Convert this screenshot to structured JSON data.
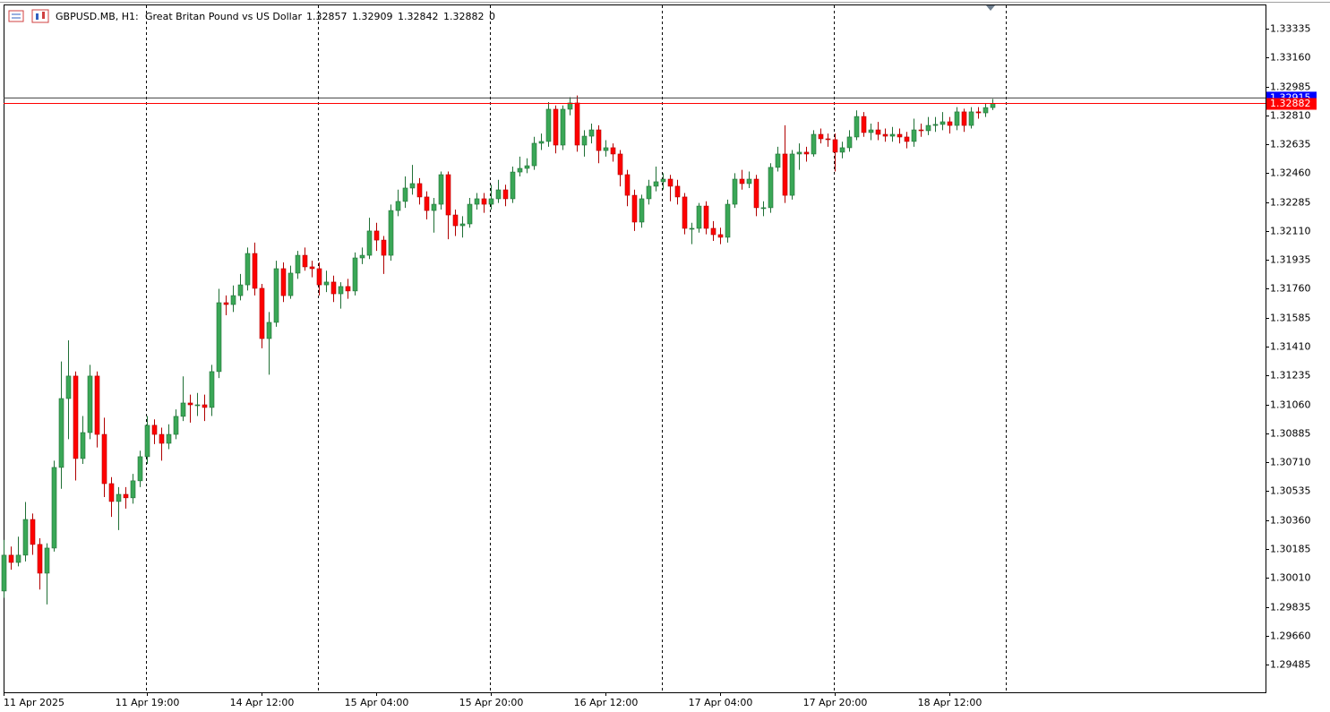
{
  "chart_data": {
    "type": "candlestick",
    "symbol": "GBPUSD.MB, H1:",
    "description": "Great Britan Pound vs US Dollar",
    "header_value": 0,
    "up_color": "#3aa757",
    "down_color": "#ff0000",
    "ask": 1.32915,
    "ask_color": "#0000ff",
    "bid": 1.32882,
    "bid_color": "#ff0000",
    "ylim": [
      1.29318,
      1.33481
    ],
    "yticks": [
      1.33335,
      {
        "value": 1.3316,
        "label": "1.33160"
      },
      1.32985,
      {
        "value": 1.3281,
        "label": "1.32810"
      },
      1.32635,
      {
        "value": 1.3246,
        "label": "1.32460"
      },
      1.32285,
      {
        "value": 1.3211,
        "label": "1.32110"
      },
      1.31935,
      {
        "value": 1.3176,
        "label": "1.31760"
      },
      1.31585,
      {
        "value": 1.3141,
        "label": "1.31410"
      },
      1.31235,
      {
        "value": 1.3106,
        "label": "1.31060"
      },
      1.30885,
      {
        "value": 1.3071,
        "label": "1.30710"
      },
      1.30535,
      {
        "value": 1.3036,
        "label": "1.30360"
      },
      1.30185,
      {
        "value": 1.3001,
        "label": "1.30010"
      },
      1.29835,
      {
        "value": 1.2966,
        "label": "1.29660"
      },
      1.29485
    ],
    "categories": [
      "11 Apr 2025",
      null,
      null,
      null,
      null,
      null,
      null,
      null,
      null,
      null,
      null,
      null,
      null,
      null,
      null,
      null,
      null,
      null,
      null,
      null,
      "11 Apr 19:00",
      null,
      null,
      null,
      null,
      null,
      null,
      null,
      null,
      null,
      null,
      null,
      null,
      null,
      null,
      null,
      "14 Apr 12:00",
      null,
      null,
      null,
      null,
      null,
      null,
      null,
      null,
      null,
      null,
      null,
      null,
      null,
      null,
      null,
      "15 Apr 04:00",
      null,
      null,
      null,
      null,
      null,
      null,
      null,
      null,
      null,
      null,
      null,
      null,
      null,
      null,
      null,
      "15 Apr 20:00",
      null,
      null,
      null,
      null,
      null,
      null,
      null,
      null,
      null,
      null,
      null,
      null,
      null,
      null,
      null,
      "16 Apr 12:00",
      null,
      null,
      null,
      null,
      null,
      null,
      null,
      null,
      null,
      null,
      null,
      null,
      null,
      null,
      null,
      "17 Apr 04:00",
      null,
      null,
      null,
      null,
      null,
      null,
      null,
      null,
      null,
      null,
      null,
      null,
      null,
      null,
      null,
      "17 Apr 20:00",
      null,
      null,
      null,
      null,
      null,
      null,
      null,
      null,
      null,
      null,
      null,
      null,
      null,
      null,
      null,
      "18 Apr 12:00",
      null,
      null,
      null,
      null,
      null,
      null
    ],
    "open": [
      1.29931,
      1.30148,
      1.30104,
      1.30148,
      1.30364,
      1.30213,
      1.30039,
      1.30191,
      1.30679,
      1.31096,
      1.31232,
      1.30733,
      1.3089,
      1.31232,
      1.30879,
      1.30581,
      1.30473,
      1.30516,
      1.30495,
      1.30598,
      1.30744,
      1.30934,
      1.30879,
      1.30825,
      1.30879,
      1.30988,
      1.31069,
      1.31058,
      1.31058,
      1.31042,
      1.31259,
      1.31676,
      1.31665,
      1.31719,
      1.31784,
      1.31974,
      1.31763,
      1.31459,
      1.31557,
      1.31882,
      1.31719,
      1.31855,
      1.31963,
      1.31893,
      1.31882,
      1.31784,
      1.31801,
      1.3173,
      1.31774,
      1.31747,
      1.31947,
      1.31963,
      1.3211,
      1.32055,
      1.31963,
      1.32234,
      1.32289,
      1.3237,
      1.32397,
      1.32316,
      1.32234,
      1.32272,
      1.32451,
      1.32207,
      1.32142,
      1.32153,
      1.32272,
      1.32305,
      1.32272,
      1.32305,
      1.32359,
      1.32305,
      1.32467,
      1.32489,
      1.32505,
      1.32641,
      1.32652,
      1.32847,
      1.3263,
      1.32847,
      1.32885,
      1.3263,
      1.32684,
      1.32722,
      1.32597,
      1.32614,
      1.32576,
      1.32451,
      1.32326,
      1.32164,
      1.32305,
      1.32381,
      1.32408,
      1.32424,
      1.32381,
      1.32316,
      1.32126,
      1.32126,
      1.32261,
      1.32126,
      1.32088,
      1.32072,
      1.32272,
      1.32424,
      1.32397,
      1.32424,
      1.32251,
      1.32251,
      1.32495,
      1.32576,
      1.32326,
      1.32576,
      1.32587,
      1.32576,
      1.32695,
      1.32668,
      1.32663,
      1.32587,
      1.32614,
      1.32679,
      1.32803,
      1.32706,
      1.32722,
      1.32695,
      1.32684,
      1.32695,
      1.32679,
      1.32652,
      1.32722,
      1.32717,
      1.32749,
      1.32755,
      1.32771,
      1.32749,
      1.32831,
      1.32749,
      1.32831,
      1.32825,
      1.32857
    ],
    "high": [
      1.3024,
      1.302,
      1.3026,
      1.3047,
      1.304,
      1.3025,
      1.3022,
      1.3072,
      1.3132,
      1.31448,
      1.3126,
      1.3099,
      1.313,
      1.3126,
      1.3098,
      1.3062,
      1.3056,
      1.3056,
      1.3064,
      1.3078,
      1.3099,
      1.3097,
      1.3092,
      1.3094,
      1.3103,
      1.3123,
      1.3112,
      1.3113,
      1.3112,
      1.313,
      1.3176,
      1.3172,
      1.3178,
      1.3185,
      1.3201,
      1.3204,
      1.3179,
      1.3162,
      1.3193,
      1.3192,
      1.319,
      1.3199,
      1.3201,
      1.3193,
      1.3192,
      1.3187,
      1.3184,
      1.318,
      1.3182,
      1.3198,
      1.3201,
      1.3219,
      1.3216,
      1.3208,
      1.3227,
      1.3236,
      1.3244,
      1.3251,
      1.3243,
      1.3235,
      1.3231,
      1.3247,
      1.3247,
      1.3224,
      1.322,
      1.3231,
      1.3234,
      1.3234,
      1.3239,
      1.3242,
      1.3239,
      1.325,
      1.3256,
      1.3255,
      1.3268,
      1.327,
      1.3289,
      1.3287,
      1.3287,
      1.3292,
      1.3293,
      1.3272,
      1.3276,
      1.3275,
      1.3266,
      1.3264,
      1.326,
      1.3248,
      1.3236,
      1.3233,
      1.3242,
      1.325,
      1.3246,
      1.3245,
      1.3242,
      1.3234,
      1.3216,
      1.3228,
      1.3229,
      1.3217,
      1.3213,
      1.323,
      1.3246,
      1.3248,
      1.3247,
      1.3245,
      1.3229,
      1.3252,
      1.3262,
      1.3275,
      1.326,
      1.3264,
      1.3262,
      1.3272,
      1.3273,
      1.327,
      1.327,
      1.3265,
      1.3272,
      1.3284,
      1.3283,
      1.3276,
      1.3277,
      1.3273,
      1.3274,
      1.3273,
      1.3271,
      1.3279,
      1.3276,
      1.328,
      1.328,
      1.3283,
      1.328,
      1.3286,
      1.3285,
      1.3286,
      1.3286,
      1.3288,
      1.32909
    ],
    "low": [
      1.2989,
      1.3006,
      1.3008,
      1.3011,
      1.3015,
      1.2994,
      1.2985,
      1.3017,
      1.3055,
      1.3085,
      1.306,
      1.307,
      1.3085,
      1.308,
      1.305,
      1.3038,
      1.303,
      1.3043,
      1.3046,
      1.3056,
      1.307,
      1.3082,
      1.3072,
      1.3079,
      1.3085,
      1.3096,
      1.3095,
      1.3099,
      1.3096,
      1.3099,
      1.3122,
      1.316,
      1.3162,
      1.3169,
      1.3175,
      1.3172,
      1.314,
      1.3124,
      1.3153,
      1.3168,
      1.317,
      1.3182,
      1.3187,
      1.3183,
      1.3172,
      1.3174,
      1.3168,
      1.3164,
      1.317,
      1.3172,
      1.3191,
      1.3194,
      1.3199,
      1.3185,
      1.3193,
      1.322,
      1.3225,
      1.3233,
      1.3227,
      1.3218,
      1.321,
      1.3224,
      1.3206,
      1.3208,
      1.3207,
      1.3213,
      1.3224,
      1.3222,
      1.3224,
      1.3228,
      1.3226,
      1.3228,
      1.3244,
      1.3246,
      1.3248,
      1.326,
      1.3262,
      1.3258,
      1.326,
      1.3281,
      1.3259,
      1.3256,
      1.3264,
      1.3252,
      1.3256,
      1.3253,
      1.3238,
      1.3226,
      1.3211,
      1.3213,
      1.3227,
      1.3235,
      1.3236,
      1.3229,
      1.3227,
      1.3209,
      1.3203,
      1.321,
      1.3209,
      1.3205,
      1.3203,
      1.3204,
      1.3225,
      1.3236,
      1.3237,
      1.322,
      1.322,
      1.3222,
      1.3247,
      1.3228,
      1.323,
      1.3248,
      1.3253,
      1.3256,
      1.3264,
      1.3262,
      1.3247,
      1.3255,
      1.3259,
      1.3266,
      1.3268,
      1.3266,
      1.3266,
      1.3265,
      1.3265,
      1.3264,
      1.3261,
      1.3262,
      1.3268,
      1.3269,
      1.3271,
      1.3272,
      1.327,
      1.3272,
      1.3271,
      1.3273,
      1.3279,
      1.328,
      1.32842
    ],
    "close": [
      1.30148,
      1.30104,
      1.30148,
      1.30364,
      1.30213,
      1.30039,
      1.30191,
      1.30679,
      1.31096,
      1.31232,
      1.30733,
      1.3089,
      1.31232,
      1.30879,
      1.30581,
      1.30473,
      1.30516,
      1.30495,
      1.30598,
      1.30744,
      1.30934,
      1.30879,
      1.30825,
      1.30879,
      1.30988,
      1.31069,
      1.31058,
      1.31058,
      1.31042,
      1.31259,
      1.31676,
      1.31665,
      1.31719,
      1.31784,
      1.31974,
      1.31763,
      1.31459,
      1.31557,
      1.31882,
      1.31719,
      1.31855,
      1.31963,
      1.31893,
      1.31882,
      1.31784,
      1.31801,
      1.3173,
      1.31774,
      1.31747,
      1.31947,
      1.31963,
      1.3211,
      1.32055,
      1.31963,
      1.32234,
      1.32289,
      1.3237,
      1.32397,
      1.32316,
      1.32234,
      1.32272,
      1.32451,
      1.32207,
      1.32142,
      1.32153,
      1.32272,
      1.32305,
      1.32272,
      1.32305,
      1.32359,
      1.32305,
      1.32467,
      1.32489,
      1.32505,
      1.32641,
      1.32652,
      1.32847,
      1.3263,
      1.32847,
      1.32885,
      1.3263,
      1.32684,
      1.32722,
      1.32597,
      1.32614,
      1.32576,
      1.32451,
      1.32326,
      1.32164,
      1.32305,
      1.32381,
      1.32408,
      1.32424,
      1.32381,
      1.32316,
      1.32126,
      1.32126,
      1.32261,
      1.32126,
      1.32088,
      1.32072,
      1.32272,
      1.32424,
      1.32397,
      1.32424,
      1.32251,
      1.32251,
      1.32495,
      1.32576,
      1.32326,
      1.32576,
      1.32587,
      1.32576,
      1.32695,
      1.32668,
      1.32663,
      1.32587,
      1.32614,
      1.32679,
      1.32803,
      1.32706,
      1.32722,
      1.32695,
      1.32684,
      1.32695,
      1.32679,
      1.32652,
      1.32722,
      1.32717,
      1.32749,
      1.32755,
      1.32771,
      1.32749,
      1.32831,
      1.32749,
      1.32831,
      1.32825,
      1.32857,
      1.32882
    ]
  }
}
